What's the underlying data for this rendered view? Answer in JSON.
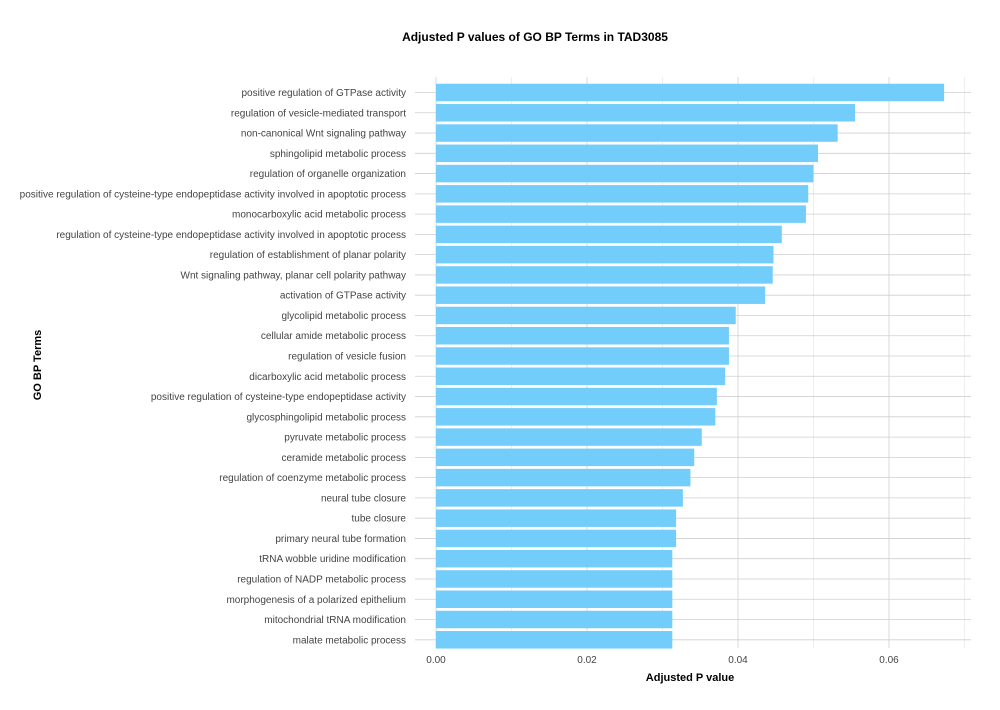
{
  "chart_data": {
    "type": "bar",
    "orientation": "horizontal",
    "title": "Adjusted P values of GO BP Terms in TAD3085",
    "xlabel": "Adjusted P value",
    "ylabel": "GO BP Terms",
    "xlim": [
      0,
      0.07
    ],
    "xticks": [
      "0.00",
      "0.02",
      "0.04",
      "0.06"
    ],
    "bar_color": "#73cdfb",
    "grid": true,
    "categories": [
      "positive regulation of GTPase activity",
      "regulation of vesicle-mediated transport",
      "non-canonical Wnt signaling pathway",
      "sphingolipid metabolic process",
      "regulation of organelle organization",
      "positive regulation of cysteine-type endopeptidase activity involved in apoptotic process",
      "monocarboxylic acid metabolic process",
      "regulation of cysteine-type endopeptidase activity involved in apoptotic process",
      "regulation of establishment of planar polarity",
      "Wnt signaling pathway, planar cell polarity pathway",
      "activation of GTPase activity",
      "glycolipid metabolic process",
      "cellular amide metabolic process",
      "regulation of vesicle fusion",
      "dicarboxylic acid metabolic process",
      "positive regulation of cysteine-type endopeptidase activity",
      "glycosphingolipid metabolic process",
      "pyruvate metabolic process",
      "ceramide metabolic process",
      "regulation of coenzyme metabolic process",
      "neural tube closure",
      "tube closure",
      "primary neural tube formation",
      "tRNA wobble uridine modification",
      "regulation of NADP metabolic process",
      "morphogenesis of a polarized epithelium",
      "mitochondrial tRNA modification",
      "malate metabolic process"
    ],
    "values": [
      0.0673,
      0.0555,
      0.0532,
      0.0506,
      0.05,
      0.0493,
      0.049,
      0.0458,
      0.0447,
      0.0446,
      0.0436,
      0.0397,
      0.0388,
      0.0388,
      0.0383,
      0.0372,
      0.037,
      0.0352,
      0.0342,
      0.0337,
      0.0327,
      0.0318,
      0.0318,
      0.0313,
      0.0313,
      0.0313,
      0.0313,
      0.0313
    ]
  }
}
